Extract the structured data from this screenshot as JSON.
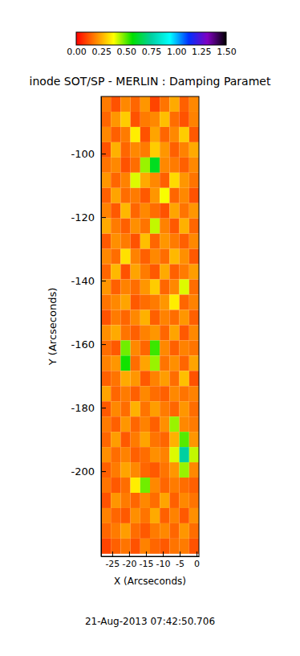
{
  "chart_data": {
    "type": "heatmap",
    "title": "inode SOT/SP - MERLIN : Damping Paramet",
    "xlabel": "X (Arcseconds)",
    "ylabel": "Y (Arcseconds)",
    "annotations": [
      "21-Aug-2013 07:42:50.706"
    ],
    "xlim": [
      -28.3,
      0.7
    ],
    "ylim": [
      -226.8,
      -82
    ],
    "xticks": [
      -25,
      -20,
      -15,
      -10,
      -5,
      0
    ],
    "yticks": [
      -200,
      -180,
      -160,
      -140,
      -120,
      -100
    ],
    "x": [
      -26.85,
      -23.95,
      -21.05,
      -18.15,
      -15.25,
      -12.35,
      -9.45,
      -6.55,
      -3.65,
      -0.75
    ],
    "y": [
      -84.4,
      -89.2,
      -94,
      -98.8,
      -103.6,
      -108.4,
      -113.2,
      -118,
      -122.8,
      -127.6,
      -132.4,
      -137.2,
      -142,
      -146.8,
      -151.6,
      -156.4,
      -161.2,
      -166,
      -170.8,
      -175.6,
      -180.4,
      -185.2,
      -190,
      -194.8,
      -199.6,
      -204.4,
      -209.2,
      -214,
      -218.8,
      -223.6
    ],
    "z": [
      [
        0.18,
        0.12,
        0.2,
        0.15,
        0.22,
        0.1,
        0.17,
        0.25,
        0.14,
        0.2
      ],
      [
        0.15,
        0.22,
        0.3,
        0.12,
        0.18,
        0.2,
        0.28,
        0.16,
        0.12,
        0.19
      ],
      [
        0.2,
        0.14,
        0.18,
        0.35,
        0.12,
        0.24,
        0.15,
        0.2,
        0.3,
        0.13
      ],
      [
        0.12,
        0.26,
        0.15,
        0.2,
        0.18,
        0.3,
        0.22,
        0.14,
        0.19,
        0.25
      ],
      [
        0.17,
        0.2,
        0.12,
        0.16,
        0.45,
        0.6,
        0.2,
        0.18,
        0.14,
        0.2
      ],
      [
        0.22,
        0.15,
        0.19,
        0.4,
        0.25,
        0.2,
        0.14,
        0.32,
        0.22,
        0.17
      ],
      [
        0.14,
        0.24,
        0.16,
        0.18,
        0.13,
        0.22,
        0.38,
        0.15,
        0.2,
        0.12
      ],
      [
        0.19,
        0.13,
        0.27,
        0.15,
        0.2,
        0.16,
        0.12,
        0.24,
        0.17,
        0.22
      ],
      [
        0.25,
        0.18,
        0.14,
        0.21,
        0.17,
        0.42,
        0.19,
        0.13,
        0.26,
        0.15
      ],
      [
        0.13,
        0.21,
        0.18,
        0.12,
        0.28,
        0.15,
        0.22,
        0.18,
        0.14,
        0.2
      ],
      [
        0.2,
        0.16,
        0.33,
        0.19,
        0.14,
        0.2,
        0.16,
        0.27,
        0.21,
        0.13
      ],
      [
        0.15,
        0.27,
        0.12,
        0.24,
        0.18,
        0.13,
        0.25,
        0.14,
        0.18,
        0.23
      ],
      [
        0.22,
        0.14,
        0.19,
        0.16,
        0.22,
        0.3,
        0.15,
        0.2,
        0.4,
        0.16
      ],
      [
        0.17,
        0.2,
        0.24,
        0.13,
        0.16,
        0.18,
        0.22,
        0.35,
        0.15,
        0.19
      ],
      [
        0.12,
        0.18,
        0.15,
        0.2,
        0.26,
        0.14,
        0.19,
        0.16,
        0.22,
        0.14
      ],
      [
        0.21,
        0.25,
        0.17,
        0.14,
        0.19,
        0.22,
        0.15,
        0.24,
        0.13,
        0.2
      ],
      [
        0.16,
        0.13,
        0.48,
        0.2,
        0.15,
        0.52,
        0.2,
        0.14,
        0.19,
        0.17
      ],
      [
        0.19,
        0.22,
        0.55,
        0.16,
        0.24,
        0.45,
        0.17,
        0.21,
        0.15,
        0.24
      ],
      [
        0.14,
        0.17,
        0.25,
        0.22,
        0.13,
        0.19,
        0.23,
        0.16,
        0.28,
        0.12
      ],
      [
        0.24,
        0.15,
        0.18,
        0.14,
        0.2,
        0.16,
        0.14,
        0.2,
        0.17,
        0.19
      ],
      [
        0.13,
        0.2,
        0.16,
        0.26,
        0.17,
        0.23,
        0.18,
        0.15,
        0.22,
        0.16
      ],
      [
        0.18,
        0.14,
        0.22,
        0.15,
        0.19,
        0.14,
        0.21,
        0.45,
        0.2,
        0.18
      ],
      [
        0.15,
        0.23,
        0.13,
        0.18,
        0.24,
        0.17,
        0.15,
        0.26,
        0.5,
        0.22
      ],
      [
        0.21,
        0.16,
        0.19,
        0.14,
        0.16,
        0.21,
        0.19,
        0.4,
        0.75,
        0.42
      ],
      [
        0.14,
        0.18,
        0.24,
        0.2,
        0.15,
        0.13,
        0.17,
        0.22,
        0.45,
        0.2
      ],
      [
        0.17,
        0.13,
        0.16,
        0.35,
        0.48,
        0.2,
        0.15,
        0.18,
        0.16,
        0.14
      ],
      [
        0.12,
        0.22,
        0.18,
        0.15,
        0.2,
        0.16,
        0.24,
        0.14,
        0.2,
        0.17
      ],
      [
        0.19,
        0.15,
        0.13,
        0.21,
        0.17,
        0.25,
        0.14,
        0.19,
        0.13,
        0.21
      ],
      [
        0.15,
        0.18,
        0.23,
        0.16,
        0.13,
        0.18,
        0.2,
        0.15,
        0.22,
        0.16
      ],
      [
        0.1,
        0.14,
        0.17,
        0.12,
        0.19,
        0.15,
        0.13,
        0.17,
        0.18,
        0.12
      ]
    ],
    "colorbar": {
      "range": [
        0,
        1.5
      ],
      "ticks": [
        {
          "value": 0,
          "label": "0.00"
        },
        {
          "value": 0.25,
          "label": "0.25"
        },
        {
          "value": 0.5,
          "label": "0.50"
        },
        {
          "value": 0.75,
          "label": "0.75"
        },
        {
          "value": 1,
          "label": "1.00"
        },
        {
          "value": 1.25,
          "label": "1.25"
        },
        {
          "value": 1.5,
          "label": "1.50"
        }
      ]
    }
  }
}
